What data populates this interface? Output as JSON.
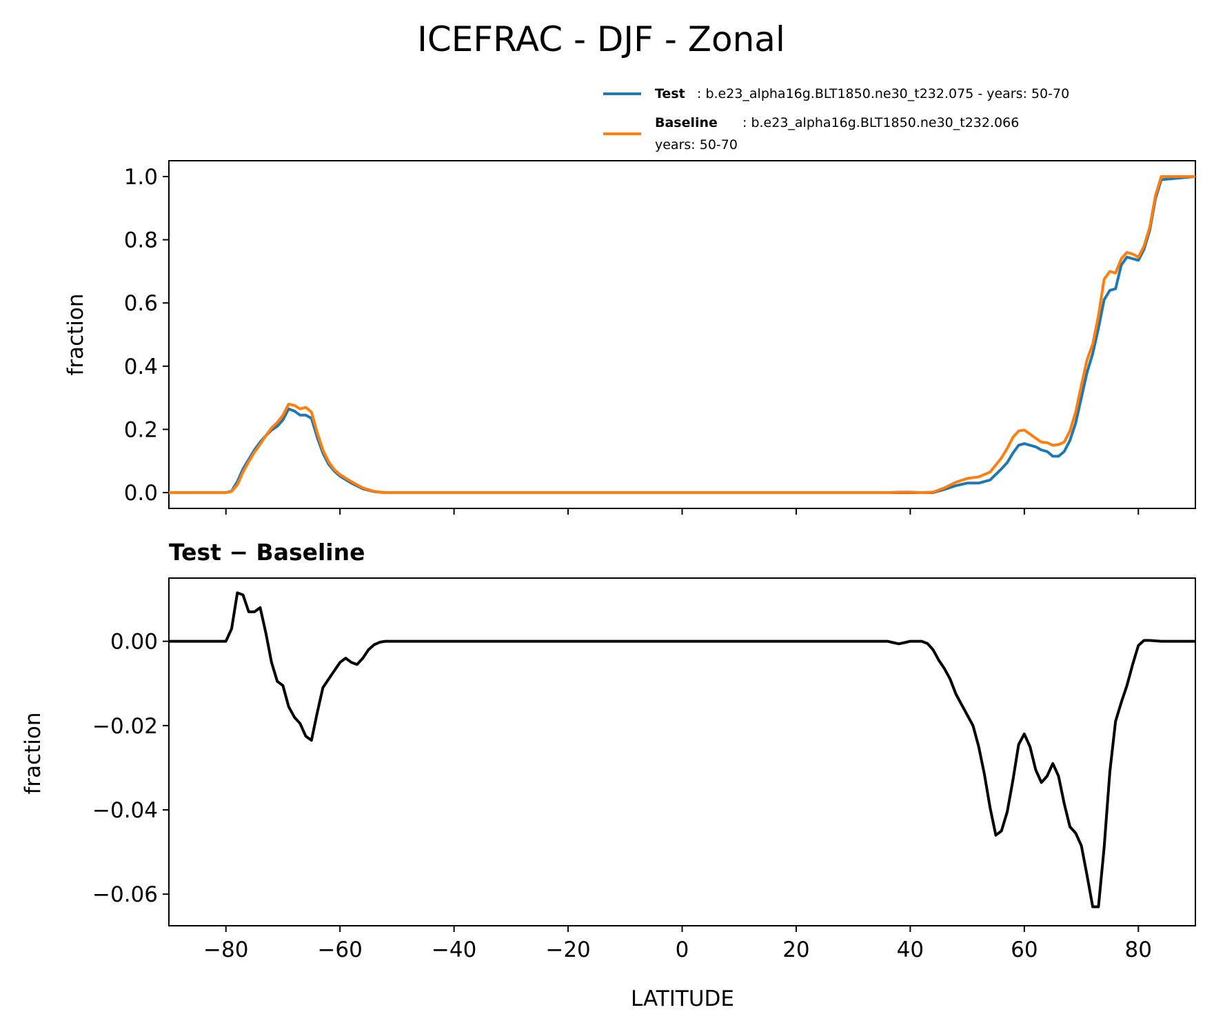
{
  "title": "ICEFRAC - DJF - Zonal",
  "colors": {
    "test": "#1f77b4",
    "baseline": "#ff7f0e",
    "diff": "#000000"
  },
  "legend": {
    "test_name": "Test",
    "test_text": ": b.e23_alpha16g.BLT1850.ne30_t232.075 - years: 50-70",
    "baseline_name": "Baseline",
    "baseline_text": ": b.e23_alpha16g.BLT1850.ne30_t232.066",
    "baseline_text2": "years: 50-70"
  },
  "chart_data": [
    {
      "type": "line",
      "title": "ICEFRAC - DJF - Zonal",
      "xlabel": "",
      "ylabel": "fraction",
      "xlim": [
        -90,
        90
      ],
      "ylim": [
        -0.05,
        1.05
      ],
      "yticks": [
        0.0,
        0.2,
        0.4,
        0.6,
        0.8,
        1.0
      ],
      "ytick_labels": [
        "0.0",
        "0.2",
        "0.4",
        "0.6",
        "0.8",
        "1.0"
      ],
      "xticks": [
        -80,
        -60,
        -40,
        -20,
        0,
        20,
        40,
        60,
        80
      ],
      "grid": false,
      "legend_position": "above-right",
      "series": [
        {
          "name": "Test",
          "x": [
            -90,
            -80,
            -79,
            -78,
            -77,
            -76,
            -75,
            -74,
            -73,
            -72,
            -71,
            -70,
            -69,
            -68,
            -67,
            -66,
            -65,
            -64,
            -63,
            -62,
            -61,
            -60,
            -58,
            -56,
            -54,
            -52,
            -50,
            36,
            38,
            40,
            42,
            44,
            46,
            48,
            50,
            52,
            54,
            56,
            57,
            58,
            59,
            60,
            61,
            62,
            63,
            64,
            65,
            66,
            67,
            68,
            69,
            70,
            71,
            72,
            73,
            74,
            75,
            76,
            77,
            78,
            79,
            80,
            81,
            82,
            83,
            84,
            90
          ],
          "y": [
            0.0,
            0.0,
            0.005,
            0.035,
            0.075,
            0.105,
            0.135,
            0.16,
            0.18,
            0.198,
            0.21,
            0.23,
            0.265,
            0.258,
            0.245,
            0.245,
            0.235,
            0.175,
            0.125,
            0.09,
            0.068,
            0.052,
            0.03,
            0.012,
            0.003,
            0.0,
            0.0,
            0.0,
            0.0,
            0.0,
            0.0,
            0.0,
            0.01,
            0.022,
            0.03,
            0.03,
            0.04,
            0.075,
            0.095,
            0.125,
            0.15,
            0.155,
            0.15,
            0.145,
            0.135,
            0.13,
            0.115,
            0.115,
            0.13,
            0.165,
            0.22,
            0.3,
            0.38,
            0.44,
            0.52,
            0.61,
            0.64,
            0.645,
            0.72,
            0.745,
            0.74,
            0.735,
            0.77,
            0.83,
            0.93,
            0.99,
            1.0
          ]
        },
        {
          "name": "Baseline",
          "x": [
            -90,
            -80,
            -79,
            -78,
            -77,
            -76,
            -75,
            -74,
            -73,
            -72,
            -71,
            -70,
            -69,
            -68,
            -67,
            -66,
            -65,
            -64,
            -63,
            -62,
            -61,
            -60,
            -58,
            -56,
            -54,
            -52,
            -50,
            36,
            38,
            40,
            42,
            44,
            46,
            48,
            50,
            52,
            54,
            56,
            57,
            58,
            59,
            60,
            61,
            62,
            63,
            64,
            65,
            66,
            67,
            68,
            69,
            70,
            71,
            72,
            73,
            74,
            75,
            76,
            77,
            78,
            79,
            80,
            81,
            82,
            83,
            84,
            90
          ],
          "y": [
            0.0,
            0.0,
            0.004,
            0.025,
            0.065,
            0.098,
            0.128,
            0.153,
            0.18,
            0.205,
            0.222,
            0.245,
            0.28,
            0.276,
            0.265,
            0.27,
            0.255,
            0.19,
            0.135,
            0.098,
            0.073,
            0.057,
            0.035,
            0.015,
            0.004,
            0.0,
            0.0,
            0.0,
            0.002,
            0.002,
            0.0,
            0.002,
            0.015,
            0.033,
            0.045,
            0.05,
            0.065,
            0.11,
            0.14,
            0.175,
            0.195,
            0.198,
            0.185,
            0.172,
            0.16,
            0.158,
            0.15,
            0.152,
            0.16,
            0.195,
            0.255,
            0.34,
            0.42,
            0.47,
            0.56,
            0.675,
            0.7,
            0.695,
            0.74,
            0.76,
            0.755,
            0.745,
            0.78,
            0.84,
            0.94,
            1.0,
            1.0
          ]
        }
      ]
    },
    {
      "type": "line",
      "title": "Test − Baseline",
      "xlabel": "LATITUDE",
      "ylabel": "fraction",
      "xlim": [
        -90,
        90
      ],
      "ylim": [
        -0.0675,
        0.015
      ],
      "yticks": [
        0.0,
        -0.02,
        -0.04,
        -0.06
      ],
      "ytick_labels": [
        "0.00",
        "−0.02",
        "−0.04",
        "−0.06"
      ],
      "xticks": [
        -80,
        -60,
        -40,
        -20,
        0,
        20,
        40,
        60,
        80
      ],
      "xtick_labels": [
        "−80",
        "−60",
        "−40",
        "−20",
        "0",
        "20",
        "40",
        "60",
        "80"
      ],
      "grid": false,
      "series": [
        {
          "x": [
            -90,
            -80,
            -79,
            -78,
            -77,
            -76,
            -75,
            -74,
            -73,
            -72,
            -71,
            -70,
            -69,
            -68,
            -67,
            -66,
            -65,
            -64,
            -63,
            -62,
            -61,
            -60,
            -59,
            -58,
            -57,
            -56,
            -55,
            -54,
            -53,
            -52,
            36,
            37,
            38,
            39,
            40,
            41,
            42,
            43,
            44,
            45,
            46,
            47,
            48,
            49,
            50,
            51,
            52,
            53,
            54,
            55,
            56,
            57,
            58,
            59,
            60,
            61,
            62,
            63,
            64,
            65,
            66,
            67,
            68,
            69,
            70,
            71,
            72,
            73,
            74,
            75,
            76,
            77,
            78,
            79,
            80,
            81,
            82,
            83,
            84,
            90
          ],
          "y": [
            0.0,
            0.0,
            0.003,
            0.0115,
            0.011,
            0.007,
            0.007,
            0.008,
            0.002,
            -0.005,
            -0.0095,
            -0.0105,
            -0.0155,
            -0.018,
            -0.0195,
            -0.0225,
            -0.0235,
            -0.017,
            -0.011,
            -0.009,
            -0.007,
            -0.005,
            -0.004,
            -0.005,
            -0.0055,
            -0.004,
            -0.002,
            -0.0008,
            -0.0002,
            0.0,
            0.0,
            -0.0003,
            -0.0006,
            -0.0003,
            0.0,
            0.0,
            0.0,
            -0.0005,
            -0.002,
            -0.0045,
            -0.0065,
            -0.009,
            -0.0125,
            -0.015,
            -0.0175,
            -0.02,
            -0.025,
            -0.0315,
            -0.0395,
            -0.046,
            -0.045,
            -0.0405,
            -0.033,
            -0.0245,
            -0.022,
            -0.025,
            -0.0305,
            -0.0335,
            -0.032,
            -0.029,
            -0.032,
            -0.0385,
            -0.044,
            -0.0455,
            -0.0485,
            -0.0555,
            -0.063,
            -0.063,
            -0.049,
            -0.031,
            -0.019,
            -0.0145,
            -0.0105,
            -0.0055,
            -0.001,
            0.0002,
            0.0002,
            0.0001,
            0.0,
            0.0
          ]
        }
      ]
    }
  ]
}
